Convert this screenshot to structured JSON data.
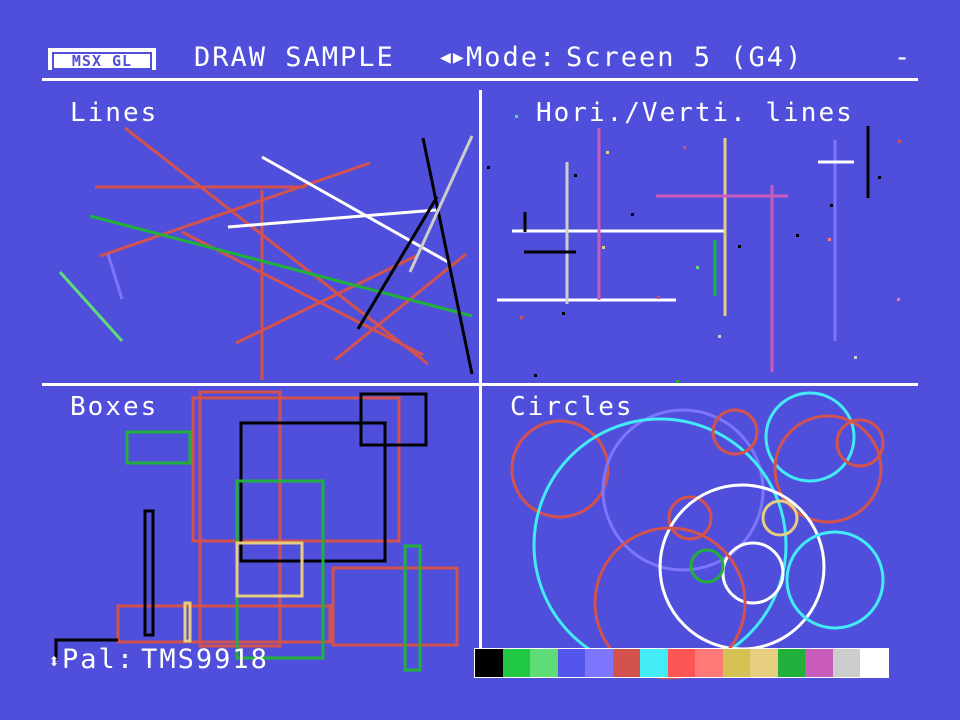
{
  "header": {
    "logo": "MSX GL",
    "title": "DRAW SAMPLE",
    "mode_label": "Mode:",
    "mode_value": "Screen 5 (G4)",
    "dash": "-"
  },
  "panels": {
    "lines": "Lines",
    "hv_lines": "Hori./Verti. lines",
    "boxes": "Boxes",
    "circles": "Circles"
  },
  "footer": {
    "palette_label": "Pal:",
    "palette_value": "TMS9918"
  },
  "palette_colors": [
    "#000000",
    "#21c842",
    "#5edc78",
    "#5455ed",
    "#7d76fc",
    "#d4524d",
    "#42ebf5",
    "#fc5554",
    "#ff7978",
    "#d4c154",
    "#e6ce80",
    "#21b03b",
    "#c95bba",
    "#cccccc",
    "#ffffff"
  ],
  "colors": {
    "background": "#4f4fdc",
    "text": "#ffffff"
  }
}
